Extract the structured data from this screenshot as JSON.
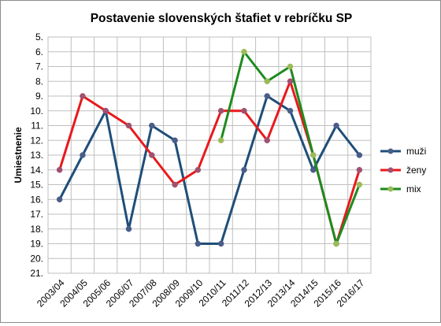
{
  "chart_data": {
    "type": "line",
    "title": "Postavenie slovenských štafiet v rebríčku SP",
    "xlabel": "",
    "ylabel": "Umiestnenie",
    "categories": [
      "2003/04",
      "2004/05",
      "2005/06",
      "2006/07",
      "2007/08",
      "2008/09",
      "2009/10",
      "2010/11",
      "2011/12",
      "2012/13",
      "2013/14",
      "2014/15",
      "2015/16",
      "2016/17"
    ],
    "y_axis": {
      "min": 5,
      "max": 21,
      "step": 1,
      "reversed": true,
      "tick_format": "N."
    },
    "grid": true,
    "legend_position": "right",
    "series": [
      {
        "name": "muži",
        "color": "#1f4e79",
        "marker_color": "#4a5d8a",
        "values": [
          16,
          13,
          10,
          18,
          11,
          12,
          19,
          19,
          14,
          9,
          10,
          14,
          11,
          13
        ]
      },
      {
        "name": "ženy",
        "color": "#e8191c",
        "marker_color": "#a05070",
        "values": [
          14,
          9,
          10,
          11,
          13,
          15,
          14,
          10,
          10,
          12,
          8,
          13,
          19,
          14
        ]
      },
      {
        "name": "mix",
        "color": "#1e8a1e",
        "marker_color": "#9bbb59",
        "values": [
          null,
          null,
          null,
          null,
          null,
          null,
          null,
          12,
          6,
          8,
          7,
          13,
          19,
          15
        ]
      }
    ]
  }
}
